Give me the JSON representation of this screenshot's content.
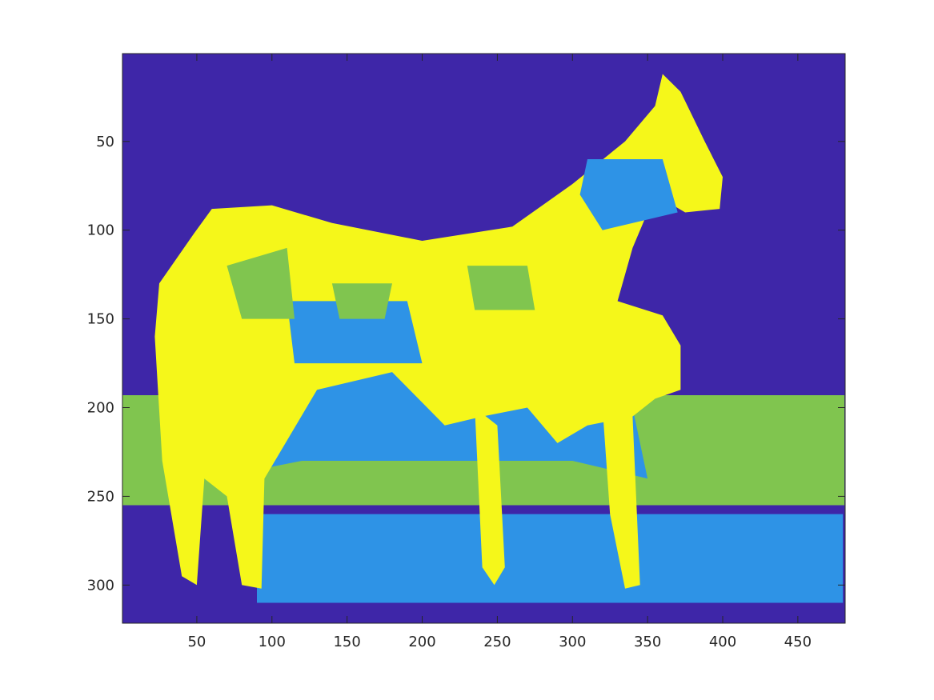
{
  "chart_data": {
    "type": "heatmap",
    "title": "",
    "xlabel": "",
    "ylabel": "",
    "xlim": [
      0.5,
      481.5
    ],
    "ylim": [
      0.5,
      321.5
    ],
    "y_direction": "reverse",
    "x_ticks": [
      50,
      100,
      150,
      200,
      250,
      300,
      350,
      400,
      450
    ],
    "y_ticks": [
      50,
      100,
      150,
      200,
      250,
      300
    ],
    "x_tick_labels": [
      "50",
      "100",
      "150",
      "200",
      "250",
      "300",
      "350",
      "400",
      "450"
    ],
    "y_tick_labels": [
      "50",
      "100",
      "150",
      "200",
      "250",
      "300"
    ],
    "clusters": 4,
    "colormap": [
      "#3e26a8",
      "#2e93e6",
      "#80c54f",
      "#f5f71a"
    ],
    "grid": false,
    "legend": "none",
    "image_content": "segmented photo of a mare and foal standing in a field",
    "label_regions": {
      "horse_body": [
        [
          48,
          102
        ],
        [
          60,
          88
        ],
        [
          100,
          86
        ],
        [
          140,
          96
        ],
        [
          200,
          106
        ],
        [
          260,
          98
        ],
        [
          300,
          74
        ],
        [
          335,
          50
        ],
        [
          355,
          30
        ],
        [
          360,
          12
        ],
        [
          372,
          22
        ],
        [
          388,
          50
        ],
        [
          400,
          70
        ],
        [
          398,
          88
        ],
        [
          375,
          90
        ],
        [
          355,
          80
        ],
        [
          340,
          110
        ],
        [
          330,
          140
        ],
        [
          360,
          148
        ],
        [
          372,
          165
        ],
        [
          372,
          190
        ],
        [
          355,
          195
        ],
        [
          340,
          205
        ],
        [
          310,
          210
        ],
        [
          290,
          220
        ],
        [
          270,
          200
        ],
        [
          240,
          205
        ],
        [
          215,
          210
        ],
        [
          180,
          180
        ],
        [
          130,
          190
        ],
        [
          95,
          240
        ],
        [
          93,
          302
        ],
        [
          80,
          300
        ],
        [
          70,
          250
        ],
        [
          55,
          240
        ],
        [
          50,
          300
        ],
        [
          40,
          295
        ],
        [
          27,
          230
        ],
        [
          22,
          160
        ],
        [
          25,
          130
        ]
      ],
      "front_leg": [
        [
          235,
          200
        ],
        [
          250,
          210
        ],
        [
          255,
          290
        ],
        [
          248,
          300
        ],
        [
          240,
          290
        ]
      ],
      "hind_leg": [
        [
          320,
          200
        ],
        [
          340,
          205
        ],
        [
          345,
          300
        ],
        [
          335,
          302
        ],
        [
          325,
          260
        ]
      ],
      "grass_band": [
        [
          0,
          193
        ],
        [
          481,
          193
        ],
        [
          481,
          260
        ],
        [
          0,
          260
        ]
      ],
      "dark_lower": [
        [
          0,
          255
        ],
        [
          481,
          255
        ],
        [
          481,
          321
        ],
        [
          0,
          321
        ]
      ],
      "blue_lower": [
        [
          90,
          260
        ],
        [
          480,
          260
        ],
        [
          480,
          310
        ],
        [
          90,
          310
        ]
      ],
      "horse_shadow": [
        [
          28,
          160
        ],
        [
          330,
          160
        ],
        [
          350,
          240
        ],
        [
          300,
          230
        ],
        [
          200,
          230
        ],
        [
          120,
          230
        ],
        [
          60,
          240
        ],
        [
          30,
          220
        ]
      ],
      "blue_patch_1": [
        [
          110,
          140
        ],
        [
          190,
          140
        ],
        [
          200,
          175
        ],
        [
          115,
          175
        ]
      ],
      "blue_patch_2": [
        [
          310,
          60
        ],
        [
          360,
          60
        ],
        [
          370,
          90
        ],
        [
          320,
          100
        ],
        [
          305,
          80
        ]
      ],
      "green_patch_1": [
        [
          70,
          120
        ],
        [
          110,
          110
        ],
        [
          115,
          150
        ],
        [
          80,
          150
        ]
      ],
      "green_patch_2": [
        [
          230,
          120
        ],
        [
          270,
          120
        ],
        [
          275,
          145
        ],
        [
          235,
          145
        ]
      ],
      "green_patch_3": [
        [
          140,
          130
        ],
        [
          180,
          130
        ],
        [
          175,
          150
        ],
        [
          145,
          150
        ]
      ]
    }
  }
}
